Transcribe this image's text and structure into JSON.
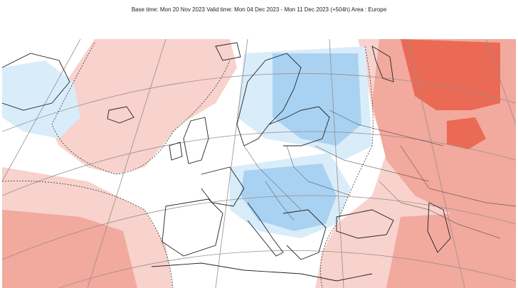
{
  "header": {
    "caption": "Base time: Mon 20 Nov 2023 Valid time: Mon 04 Dec 2023 - Mon 11 Dec 2023 (+504h) Area : Europe"
  },
  "map": {
    "region": "Europe",
    "colors": {
      "warm_light": "#f8d2cc",
      "warm_mid": "#f2a99e",
      "warm_strong": "#ea6a55",
      "cool_light": "#d9ecfa",
      "cool_mid": "#a9d2f2",
      "neutral": "#ffffff",
      "coast": "#222222",
      "graticule": "#9a8e8a"
    }
  }
}
